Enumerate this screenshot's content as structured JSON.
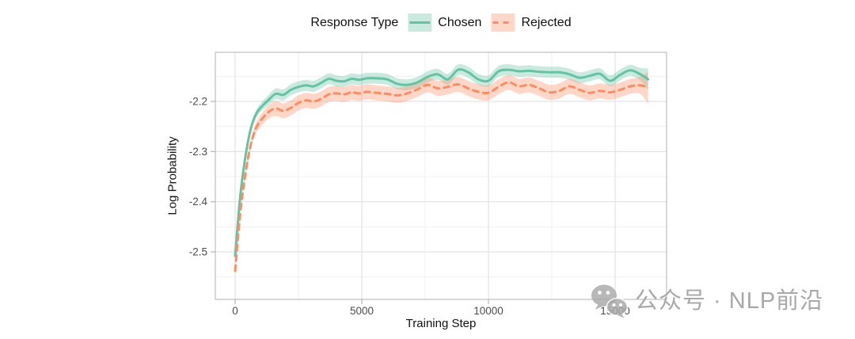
{
  "page": {
    "background": "#ffffff"
  },
  "legend": {
    "title": "Response Type",
    "items": [
      {
        "label": "Chosen",
        "line_color": "#66C2A5",
        "style": "solid"
      },
      {
        "label": "Rejected",
        "line_color": "#FC8D62",
        "style": "dashed"
      }
    ]
  },
  "watermark": {
    "icon": "wechat-icon",
    "text": "公众号 · NLP前沿",
    "color": "#a8a8a8"
  },
  "chart_data": {
    "type": "line",
    "title": "",
    "xlabel": "Training Step",
    "ylabel": "Log Probability",
    "legend_position": "top",
    "grid": true,
    "xlim": [
      -781.25,
      17031.25
    ],
    "ylim": [
      -2.5947,
      -2.1021
    ],
    "x_ticks": {
      "major": [
        0,
        5000,
        10000,
        15000
      ],
      "labels": [
        "0",
        "5000",
        "10000",
        "15000"
      ],
      "minor": [
        2500,
        7500,
        12500
      ]
    },
    "y_ticks": {
      "major": [
        -2.2,
        -2.3,
        -2.4,
        -2.5
      ],
      "labels": [
        "-2.2",
        "-2.3",
        "-2.4",
        "-2.5"
      ],
      "minor": [
        -2.15,
        -2.25,
        -2.35,
        -2.45,
        -2.55
      ]
    },
    "x": [
      0,
      200,
      400,
      600,
      800,
      1000,
      1300,
      1600,
      1900,
      2200,
      2500,
      2800,
      3100,
      3400,
      3700,
      4000,
      4300,
      4600,
      4900,
      5200,
      5600,
      6000,
      6400,
      6800,
      7200,
      7600,
      8000,
      8400,
      8800,
      9200,
      9600,
      10000,
      10400,
      10800,
      11200,
      11600,
      12000,
      12400,
      12800,
      13200,
      13600,
      14000,
      14400,
      14800,
      15200,
      15600,
      16000,
      16300
    ],
    "series": [
      {
        "name": "Chosen",
        "color": "#66C2A5",
        "dash": "solid",
        "band_alpha": 0.35,
        "band": {
          "start": 0.005,
          "base": 0.011,
          "end": 0.022
        },
        "values": [
          -2.508,
          -2.39,
          -2.312,
          -2.258,
          -2.228,
          -2.213,
          -2.198,
          -2.185,
          -2.187,
          -2.177,
          -2.171,
          -2.168,
          -2.17,
          -2.163,
          -2.155,
          -2.159,
          -2.16,
          -2.155,
          -2.157,
          -2.154,
          -2.154,
          -2.156,
          -2.165,
          -2.167,
          -2.162,
          -2.151,
          -2.146,
          -2.156,
          -2.137,
          -2.142,
          -2.156,
          -2.159,
          -2.14,
          -2.137,
          -2.14,
          -2.139,
          -2.141,
          -2.142,
          -2.142,
          -2.146,
          -2.153,
          -2.149,
          -2.145,
          -2.159,
          -2.147,
          -2.138,
          -2.146,
          -2.156
        ]
      },
      {
        "name": "Rejected",
        "color": "#FC8D62",
        "dash": "dashed",
        "band_alpha": 0.35,
        "band": {
          "start": 0.006,
          "base": 0.015,
          "end": 0.032
        },
        "values": [
          -2.538,
          -2.424,
          -2.347,
          -2.29,
          -2.256,
          -2.239,
          -2.222,
          -2.214,
          -2.219,
          -2.213,
          -2.203,
          -2.198,
          -2.2,
          -2.195,
          -2.186,
          -2.184,
          -2.186,
          -2.182,
          -2.184,
          -2.181,
          -2.183,
          -2.185,
          -2.188,
          -2.184,
          -2.176,
          -2.167,
          -2.174,
          -2.171,
          -2.166,
          -2.174,
          -2.181,
          -2.183,
          -2.171,
          -2.162,
          -2.17,
          -2.167,
          -2.174,
          -2.182,
          -2.179,
          -2.17,
          -2.177,
          -2.183,
          -2.179,
          -2.182,
          -2.177,
          -2.17,
          -2.168,
          -2.173
        ]
      }
    ]
  }
}
